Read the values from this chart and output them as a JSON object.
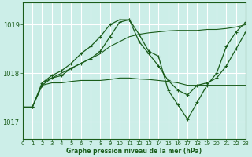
{
  "xlabel": "Graphe pression niveau de la mer (hPa)",
  "bg_color": "#cceee8",
  "grid_color": "#ffffff",
  "line_color": "#1a5c1a",
  "xmin": 0,
  "xmax": 23,
  "ymin": 1016.65,
  "ymax": 1019.45,
  "yticks": [
    1017,
    1018,
    1019
  ],
  "xticks": [
    0,
    1,
    2,
    3,
    4,
    5,
    6,
    7,
    8,
    9,
    10,
    11,
    12,
    13,
    14,
    15,
    16,
    17,
    18,
    19,
    20,
    21,
    22,
    23
  ],
  "series1": {
    "x": [
      0,
      1,
      2,
      3,
      4,
      5,
      6,
      7,
      8,
      9,
      10,
      11,
      12,
      13,
      14,
      15,
      16,
      17,
      18,
      19,
      20,
      21,
      22,
      23
    ],
    "y": [
      1017.3,
      1017.3,
      1017.8,
      1017.95,
      1018.05,
      1018.2,
      1018.4,
      1018.55,
      1018.75,
      1019.0,
      1019.1,
      1019.1,
      1018.8,
      1018.45,
      1018.35,
      1017.65,
      1017.35,
      1017.05,
      1017.4,
      1017.75,
      1018.0,
      1018.55,
      1018.85,
      1019.05
    ]
  },
  "series2": {
    "x": [
      0,
      1,
      2,
      3,
      4,
      5,
      6,
      7,
      8,
      9,
      10,
      11,
      12,
      13,
      14,
      15,
      16,
      17,
      18,
      19,
      20,
      21,
      22,
      23
    ],
    "y": [
      1017.3,
      1017.3,
      1017.75,
      1017.9,
      1017.95,
      1018.1,
      1018.2,
      1018.3,
      1018.45,
      1018.75,
      1019.05,
      1019.1,
      1018.65,
      1018.4,
      1018.15,
      1017.85,
      1017.65,
      1017.55,
      1017.75,
      1017.8,
      1017.9,
      1018.15,
      1018.5,
      1018.85
    ]
  },
  "series3": {
    "x": [
      0,
      1,
      2,
      3,
      4,
      5,
      6,
      7,
      8,
      9,
      10,
      11,
      12,
      13,
      14,
      15,
      16,
      17,
      18,
      19,
      20,
      21,
      22,
      23
    ],
    "y": [
      1017.3,
      1017.3,
      1017.75,
      1017.8,
      1017.8,
      1017.83,
      1017.85,
      1017.85,
      1017.85,
      1017.87,
      1017.9,
      1017.9,
      1017.88,
      1017.87,
      1017.85,
      1017.83,
      1017.8,
      1017.75,
      1017.75,
      1017.75,
      1017.75,
      1017.75,
      1017.75,
      1017.75
    ]
  },
  "series4": {
    "x": [
      2,
      3,
      4,
      5,
      6,
      7,
      8,
      9,
      10,
      11,
      12,
      13,
      14,
      15,
      16,
      17,
      18,
      19,
      20,
      21,
      22,
      23
    ],
    "y": [
      1017.8,
      1017.9,
      1018.0,
      1018.1,
      1018.2,
      1018.3,
      1018.4,
      1018.55,
      1018.65,
      1018.75,
      1018.8,
      1018.83,
      1018.85,
      1018.87,
      1018.88,
      1018.88,
      1018.88,
      1018.9,
      1018.9,
      1018.92,
      1018.95,
      1019.0
    ]
  }
}
